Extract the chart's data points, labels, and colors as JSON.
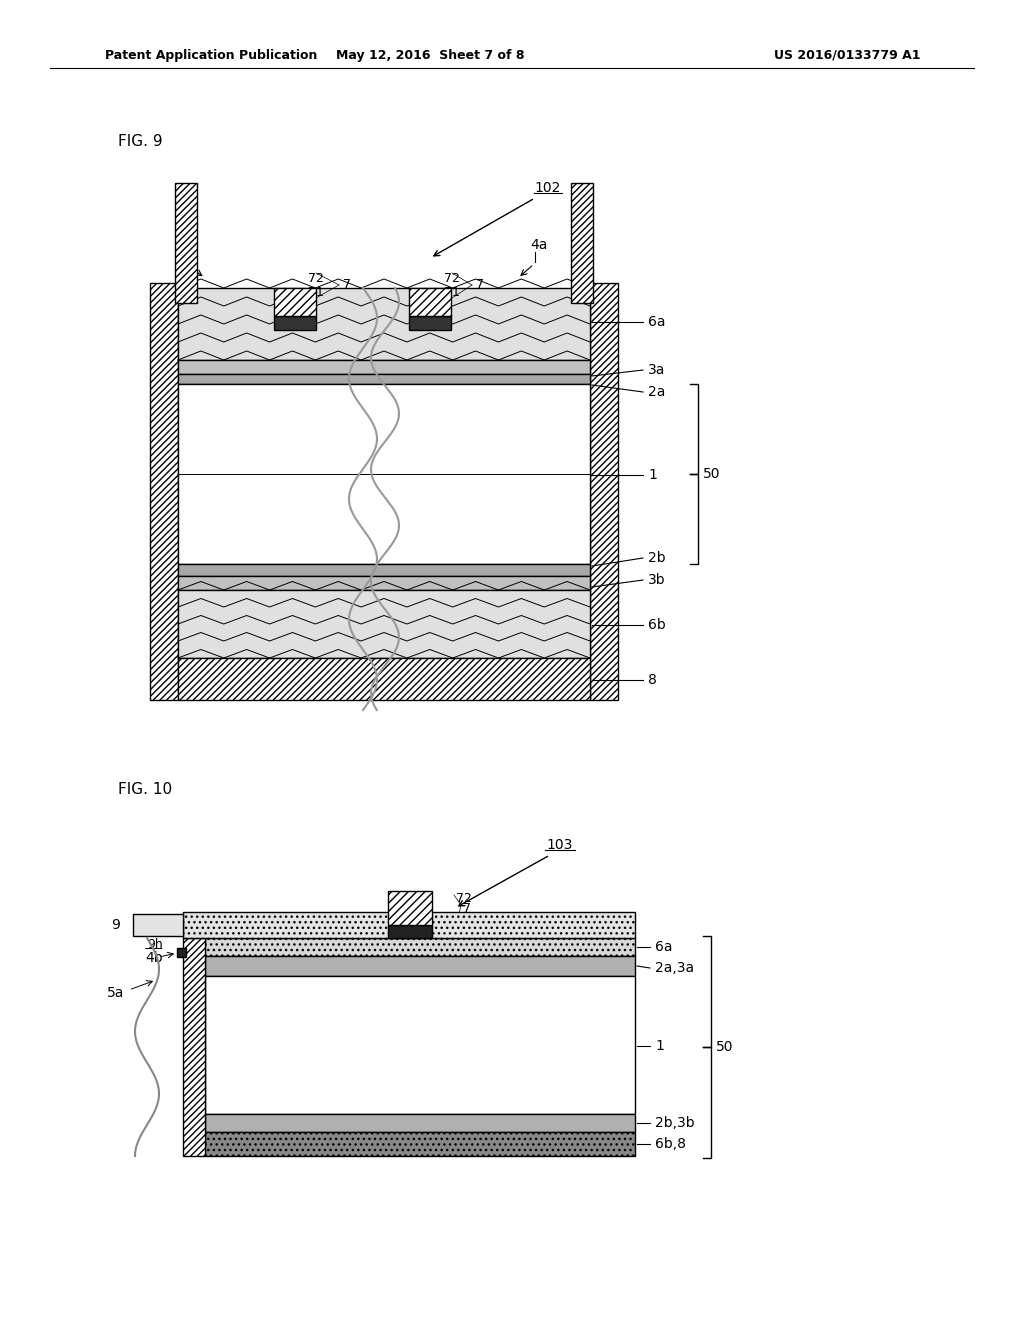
{
  "header_left": "Patent Application Publication",
  "header_mid": "May 12, 2016  Sheet 7 of 8",
  "header_right": "US 2016/0133779 A1",
  "fig9_label": "FIG. 9",
  "fig10_label": "FIG. 10",
  "ref102": "102",
  "ref103": "103",
  "bg_color": "#ffffff",
  "line_color": "#000000",
  "gray_light": "#dcdcdc",
  "gray_medium": "#aaaaaa",
  "gray_dark": "#555555",
  "dark_fill": "#333333"
}
